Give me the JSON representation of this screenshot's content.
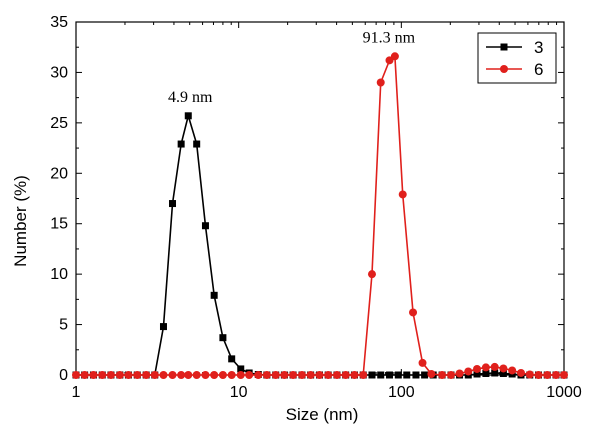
{
  "chart_data": {
    "type": "line",
    "xlabel": "Size (nm)",
    "ylabel": "Number (%)",
    "xscale": "log",
    "xlim": [
      1,
      1000
    ],
    "ylim": [
      0,
      35
    ],
    "xticks": [
      1,
      10,
      100,
      1000
    ],
    "xtick_labels": [
      "1",
      "10",
      "100",
      "1000"
    ],
    "yticks": [
      0,
      5,
      10,
      15,
      20,
      25,
      30,
      35
    ],
    "ytick_labels": [
      "0",
      "5",
      "10",
      "15",
      "20",
      "25",
      "30",
      "35"
    ],
    "grid": false,
    "legend_position": "top-right",
    "series": [
      {
        "name": "3",
        "color": "#000000",
        "marker": "square",
        "x": [
          1.0,
          1.13,
          1.28,
          1.45,
          1.64,
          1.86,
          2.1,
          2.38,
          2.7,
          3.05,
          3.45,
          3.92,
          4.43,
          4.9,
          5.52,
          6.25,
          7.07,
          8.0,
          9.06,
          10.3,
          11.6,
          13.2,
          14.9,
          16.9,
          19.1,
          21.6,
          24.5,
          27.7,
          31.4,
          35.5,
          40.2,
          45.5,
          51.5,
          58.3,
          66.0,
          74.7,
          84.6,
          95.8,
          108,
          123,
          139,
          157,
          178,
          202,
          228,
          258,
          292,
          331,
          375,
          424,
          480,
          544,
          616,
          697,
          789,
          893,
          1000
        ],
        "y": [
          0,
          0,
          0,
          0,
          0,
          0,
          0,
          0,
          0,
          0,
          4.8,
          17.0,
          22.9,
          25.7,
          22.9,
          14.8,
          7.9,
          3.7,
          1.6,
          0.6,
          0.2,
          0.05,
          0,
          0,
          0,
          0,
          0,
          0,
          0,
          0,
          0,
          0,
          0,
          0,
          0,
          0,
          0,
          0,
          0,
          0,
          0,
          0,
          0,
          0,
          0,
          0,
          0.1,
          0.15,
          0.2,
          0.15,
          0.1,
          0,
          0,
          0,
          0,
          0,
          0
        ]
      },
      {
        "name": "6",
        "color": "#e0201c",
        "marker": "circle",
        "x": [
          1.0,
          1.13,
          1.28,
          1.45,
          1.64,
          1.86,
          2.1,
          2.38,
          2.7,
          3.05,
          3.45,
          3.92,
          4.43,
          4.9,
          5.52,
          6.25,
          7.07,
          8.0,
          9.06,
          10.3,
          11.6,
          13.2,
          14.9,
          16.9,
          19.1,
          21.6,
          24.5,
          27.7,
          31.4,
          35.5,
          40.2,
          45.5,
          51.5,
          58.3,
          66.0,
          74.7,
          84.6,
          91.3,
          102,
          118,
          135,
          153,
          178,
          202,
          228,
          258,
          292,
          331,
          375,
          424,
          480,
          544,
          616,
          697,
          789,
          893,
          1000
        ],
        "y": [
          0,
          0,
          0,
          0,
          0,
          0,
          0,
          0,
          0,
          0,
          0,
          0,
          0,
          0,
          0,
          0,
          0,
          0,
          0,
          0,
          0,
          0,
          0,
          0,
          0,
          0,
          0,
          0,
          0,
          0,
          0,
          0,
          0,
          0,
          10.0,
          29.0,
          31.2,
          31.6,
          17.9,
          6.2,
          1.2,
          0.1,
          0,
          0,
          0.15,
          0.35,
          0.6,
          0.75,
          0.8,
          0.65,
          0.45,
          0.2,
          0.05,
          0,
          0,
          0,
          0
        ]
      }
    ],
    "annotations": [
      {
        "text": "4.9 nm",
        "x": 4.9,
        "y": 25.7
      },
      {
        "text": "91.3 nm",
        "x": 91.3,
        "y": 31.6
      }
    ]
  }
}
